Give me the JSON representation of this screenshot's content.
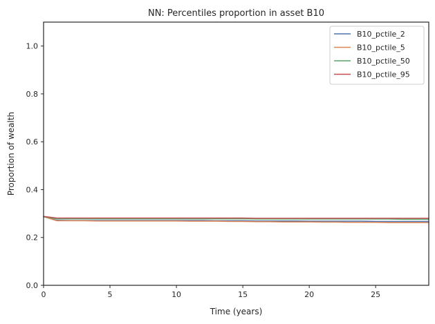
{
  "chart_data": {
    "type": "line",
    "title": "NN: Percentiles proportion in asset B10",
    "xlabel": "Time (years)",
    "ylabel": "Proportion of wealth",
    "xlim": [
      0,
      29
    ],
    "ylim": [
      0,
      1.1
    ],
    "xticks": [
      0,
      5,
      10,
      15,
      20,
      25
    ],
    "xtick_labels": [
      "0",
      "5",
      "10",
      "15",
      "20",
      "25"
    ],
    "yticks": [
      0,
      0.2,
      0.4,
      0.6,
      0.8,
      1.0
    ],
    "ytick_labels": [
      "0.0",
      "0.2",
      "0.4",
      "0.6",
      "0.8",
      "1.0"
    ],
    "grid": false,
    "legend_position": "top-right",
    "x": [
      0,
      1,
      2,
      3,
      4,
      5,
      6,
      7,
      8,
      9,
      10,
      11,
      12,
      13,
      14,
      15,
      16,
      17,
      18,
      19,
      20,
      21,
      22,
      23,
      24,
      25,
      26,
      27,
      28,
      29
    ],
    "series": [
      {
        "name": "B10_pctile_2",
        "color": "#4c72b0",
        "values": [
          0.287,
          0.272,
          0.271,
          0.271,
          0.271,
          0.271,
          0.271,
          0.271,
          0.271,
          0.271,
          0.271,
          0.271,
          0.271,
          0.27,
          0.27,
          0.27,
          0.269,
          0.269,
          0.269,
          0.269,
          0.268,
          0.268,
          0.268,
          0.268,
          0.268,
          0.267,
          0.267,
          0.267,
          0.267,
          0.267
        ]
      },
      {
        "name": "B10_pctile_5",
        "color": "#dd8452",
        "values": [
          0.287,
          0.27,
          0.27,
          0.27,
          0.269,
          0.269,
          0.269,
          0.269,
          0.269,
          0.269,
          0.269,
          0.268,
          0.268,
          0.268,
          0.267,
          0.267,
          0.266,
          0.266,
          0.265,
          0.265,
          0.265,
          0.264,
          0.264,
          0.263,
          0.263,
          0.263,
          0.262,
          0.262,
          0.262,
          0.262
        ]
      },
      {
        "name": "B10_pctile_50",
        "color": "#55a868",
        "values": [
          0.287,
          0.278,
          0.278,
          0.278,
          0.278,
          0.278,
          0.278,
          0.278,
          0.278,
          0.278,
          0.278,
          0.278,
          0.278,
          0.278,
          0.278,
          0.278,
          0.277,
          0.277,
          0.277,
          0.277,
          0.277,
          0.277,
          0.277,
          0.277,
          0.277,
          0.277,
          0.277,
          0.276,
          0.276,
          0.276
        ]
      },
      {
        "name": "B10_pctile_95",
        "color": "#c44e52",
        "values": [
          0.288,
          0.281,
          0.281,
          0.281,
          0.281,
          0.281,
          0.281,
          0.281,
          0.281,
          0.281,
          0.281,
          0.281,
          0.281,
          0.281,
          0.281,
          0.281,
          0.28,
          0.28,
          0.28,
          0.28,
          0.28,
          0.28,
          0.28,
          0.28,
          0.28,
          0.28,
          0.28,
          0.28,
          0.28,
          0.28
        ]
      }
    ]
  }
}
